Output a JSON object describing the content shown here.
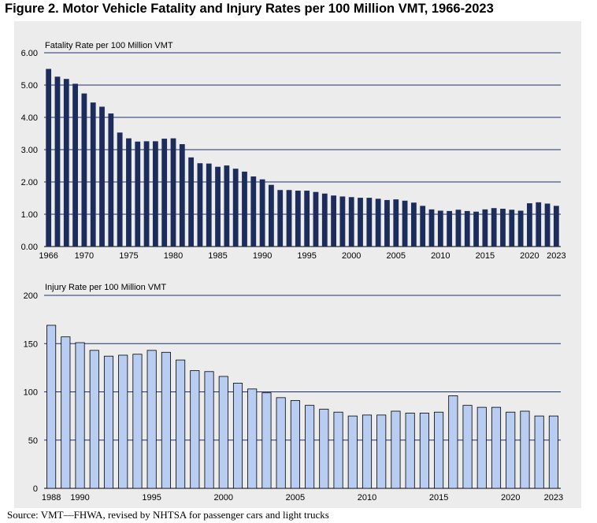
{
  "title": "Figure 2. Motor Vehicle Fatality and Injury Rates per 100 Million VMT, 1966-2023",
  "source": "Source: VMT—FHWA, revised by NHTSA for passenger cars and light trucks",
  "chart_data": [
    {
      "type": "bar",
      "title": "Fatality Rate per 100 Million VMT",
      "x": [
        1966,
        1967,
        1968,
        1969,
        1970,
        1971,
        1972,
        1973,
        1974,
        1975,
        1976,
        1977,
        1978,
        1979,
        1980,
        1981,
        1982,
        1983,
        1984,
        1985,
        1986,
        1987,
        1988,
        1989,
        1990,
        1991,
        1992,
        1993,
        1994,
        1995,
        1996,
        1997,
        1998,
        1999,
        2000,
        2001,
        2002,
        2003,
        2004,
        2005,
        2006,
        2007,
        2008,
        2009,
        2010,
        2011,
        2012,
        2013,
        2014,
        2015,
        2016,
        2017,
        2018,
        2019,
        2020,
        2021,
        2022,
        2023
      ],
      "values": [
        5.5,
        5.26,
        5.19,
        5.04,
        4.74,
        4.46,
        4.33,
        4.12,
        3.53,
        3.35,
        3.25,
        3.26,
        3.26,
        3.34,
        3.35,
        3.17,
        2.76,
        2.58,
        2.57,
        2.47,
        2.51,
        2.41,
        2.32,
        2.17,
        2.08,
        1.91,
        1.75,
        1.75,
        1.73,
        1.73,
        1.69,
        1.64,
        1.58,
        1.55,
        1.53,
        1.51,
        1.51,
        1.48,
        1.44,
        1.46,
        1.42,
        1.36,
        1.26,
        1.15,
        1.11,
        1.1,
        1.14,
        1.1,
        1.08,
        1.15,
        1.19,
        1.17,
        1.14,
        1.11,
        1.34,
        1.37,
        1.33,
        1.26
      ],
      "tick_labels": [
        "1966",
        "1970",
        "1975",
        "1980",
        "1985",
        "1990",
        "1995",
        "2000",
        "2005",
        "2010",
        "2015",
        "2020",
        "2023"
      ],
      "y_tick_labels": [
        "0.00",
        "1.00",
        "2.00",
        "3.00",
        "4.00",
        "5.00",
        "6.00"
      ],
      "ylim": [
        0,
        6
      ],
      "bar_color": "#1c2d5c",
      "grid": true,
      "xlabel": "",
      "ylabel": ""
    },
    {
      "type": "bar",
      "title": "Injury Rate per 100 Million VMT",
      "x": [
        1988,
        1989,
        1990,
        1991,
        1992,
        1993,
        1994,
        1995,
        1996,
        1997,
        1998,
        1999,
        2000,
        2001,
        2002,
        2003,
        2004,
        2005,
        2006,
        2007,
        2008,
        2009,
        2010,
        2011,
        2012,
        2013,
        2014,
        2015,
        2016,
        2017,
        2018,
        2019,
        2020,
        2021,
        2022,
        2023
      ],
      "values": [
        169,
        157,
        151,
        143,
        137,
        138,
        139,
        143,
        141,
        133,
        122,
        121,
        116,
        109,
        103,
        99,
        94,
        91,
        86,
        82,
        79,
        75,
        76,
        76,
        80,
        78,
        78,
        79,
        96,
        86,
        84,
        84,
        79,
        80,
        75,
        75
      ],
      "tick_labels": [
        "1988",
        "1990",
        "1995",
        "2000",
        "2005",
        "2010",
        "2015",
        "2020",
        "2023"
      ],
      "y_tick_labels": [
        "0",
        "50",
        "100",
        "150",
        "200"
      ],
      "ylim": [
        0,
        200
      ],
      "bar_color": "#b9cdf3",
      "bar_stroke": "#000000",
      "grid": true,
      "xlabel": "",
      "ylabel": ""
    }
  ]
}
